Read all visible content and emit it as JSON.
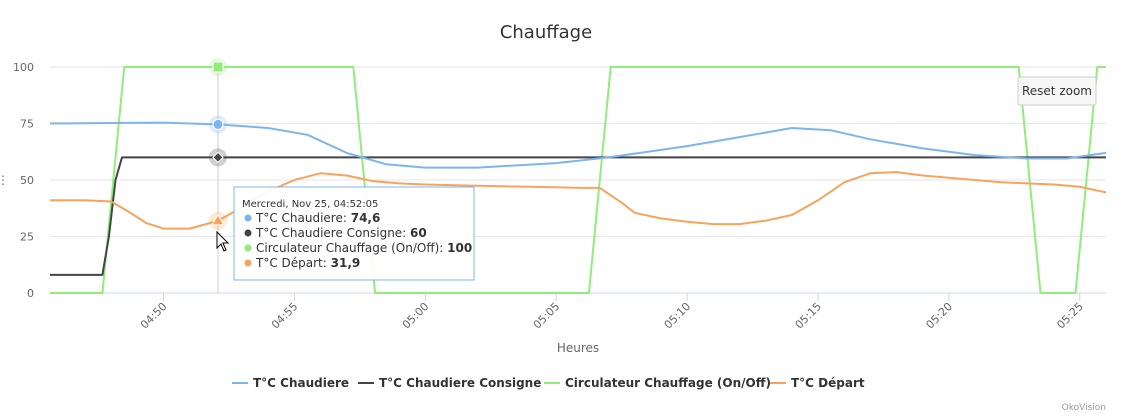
{
  "chart_data": {
    "type": "line",
    "title": "Chauffage",
    "xlabel": "Heures",
    "ylabel": "",
    "ylim": [
      0,
      100
    ],
    "yticks": [
      0,
      25,
      50,
      75,
      100
    ],
    "xlim": [
      "04:45:40",
      "05:26:00"
    ],
    "xticks": [
      "04:50",
      "04:55",
      "05:00",
      "05:05",
      "05:10",
      "05:15",
      "05:20",
      "05:25"
    ],
    "grid": true,
    "legend_position": "bottom",
    "series": [
      {
        "name": "T°C Chaudiere",
        "color": "#7cb5ec",
        "points": [
          [
            "04:45:40",
            75
          ],
          [
            "04:48:00",
            75.2
          ],
          [
            "04:50:00",
            75.4
          ],
          [
            "04:52:05",
            74.6
          ],
          [
            "04:54:00",
            73
          ],
          [
            "04:55:30",
            70
          ],
          [
            "04:57:00",
            62
          ],
          [
            "04:58:30",
            57
          ],
          [
            "05:00:00",
            55.5
          ],
          [
            "05:02:00",
            55.5
          ],
          [
            "05:05:00",
            57.5
          ],
          [
            "05:07:00",
            60
          ],
          [
            "05:10:00",
            65
          ],
          [
            "05:12:00",
            69
          ],
          [
            "05:14:00",
            73
          ],
          [
            "05:15:30",
            72
          ],
          [
            "05:17:00",
            68
          ],
          [
            "05:19:00",
            64
          ],
          [
            "05:21:00",
            61
          ],
          [
            "05:23:00",
            59.5
          ],
          [
            "05:24:30",
            59.5
          ],
          [
            "05:26:00",
            62
          ]
        ]
      },
      {
        "name": "T°C Chaudiere Consigne",
        "color": "#434348",
        "points": [
          [
            "04:45:40",
            8
          ],
          [
            "04:47:40",
            8
          ],
          [
            "04:47:55",
            25
          ],
          [
            "04:48:10",
            50
          ],
          [
            "04:48:25",
            60
          ],
          [
            "05:26:00",
            60
          ]
        ]
      },
      {
        "name": "Circulateur Chauffage (On/Off)",
        "color": "#90ed7d",
        "points": [
          [
            "04:45:40",
            0
          ],
          [
            "04:47:40",
            0
          ],
          [
            "04:48:05",
            50
          ],
          [
            "04:48:30",
            100
          ],
          [
            "04:57:15",
            100
          ],
          [
            "04:57:40",
            50
          ],
          [
            "04:58:05",
            0
          ],
          [
            "05:06:15",
            0
          ],
          [
            "05:06:40",
            50
          ],
          [
            "05:07:05",
            100
          ],
          [
            "05:22:40",
            100
          ],
          [
            "05:23:05",
            50
          ],
          [
            "05:23:30",
            0
          ],
          [
            "05:24:50",
            0
          ],
          [
            "05:25:15",
            50
          ],
          [
            "05:25:40",
            100
          ],
          [
            "05:26:00",
            100
          ]
        ]
      },
      {
        "name": "T°C Départ",
        "color": "#f7a35c",
        "points": [
          [
            "04:45:40",
            41
          ],
          [
            "04:47:00",
            41
          ],
          [
            "04:48:00",
            40.5
          ],
          [
            "04:48:40",
            36
          ],
          [
            "04:49:20",
            31
          ],
          [
            "04:50:00",
            28.5
          ],
          [
            "04:51:00",
            28.5
          ],
          [
            "04:52:05",
            31.9
          ],
          [
            "04:53:00",
            38
          ],
          [
            "04:54:00",
            45
          ],
          [
            "04:55:00",
            50
          ],
          [
            "04:56:00",
            53
          ],
          [
            "04:57:00",
            52
          ],
          [
            "04:58:00",
            49.5
          ],
          [
            "04:59:00",
            48.5
          ],
          [
            "05:00:00",
            48
          ],
          [
            "05:02:00",
            47.5
          ],
          [
            "05:04:00",
            47
          ],
          [
            "05:06:00",
            46.5
          ],
          [
            "05:06:40",
            46.5
          ],
          [
            "05:07:30",
            40
          ],
          [
            "05:08:00",
            35.5
          ],
          [
            "05:09:00",
            33
          ],
          [
            "05:10:00",
            31.5
          ],
          [
            "05:11:00",
            30.5
          ],
          [
            "05:12:00",
            30.5
          ],
          [
            "05:13:00",
            32
          ],
          [
            "05:14:00",
            34.5
          ],
          [
            "05:15:00",
            41
          ],
          [
            "05:16:00",
            49
          ],
          [
            "05:17:00",
            53
          ],
          [
            "05:18:00",
            53.5
          ],
          [
            "05:19:00",
            52
          ],
          [
            "05:20:00",
            51
          ],
          [
            "05:22:00",
            49
          ],
          [
            "05:24:00",
            48
          ],
          [
            "05:25:00",
            47
          ],
          [
            "05:26:00",
            44.5
          ]
        ]
      }
    ],
    "tooltip": {
      "header": "Mercredi, Nov 25, 04:52:05",
      "time": "04:52:05",
      "items": [
        {
          "label": "T°C Chaudiere: ",
          "value": "74,6",
          "color": "#7cb5ec"
        },
        {
          "label": "T°C Chaudiere Consigne: ",
          "value": "60",
          "color": "#434348"
        },
        {
          "label": "Circulateur Chauffage (On/Off): ",
          "value": "100",
          "color": "#90ed7d"
        },
        {
          "label": "T°C Départ: ",
          "value": "31,9",
          "color": "#f7a35c"
        }
      ]
    }
  },
  "reset_zoom_label": "Reset zoom",
  "credits": "OkoVision"
}
